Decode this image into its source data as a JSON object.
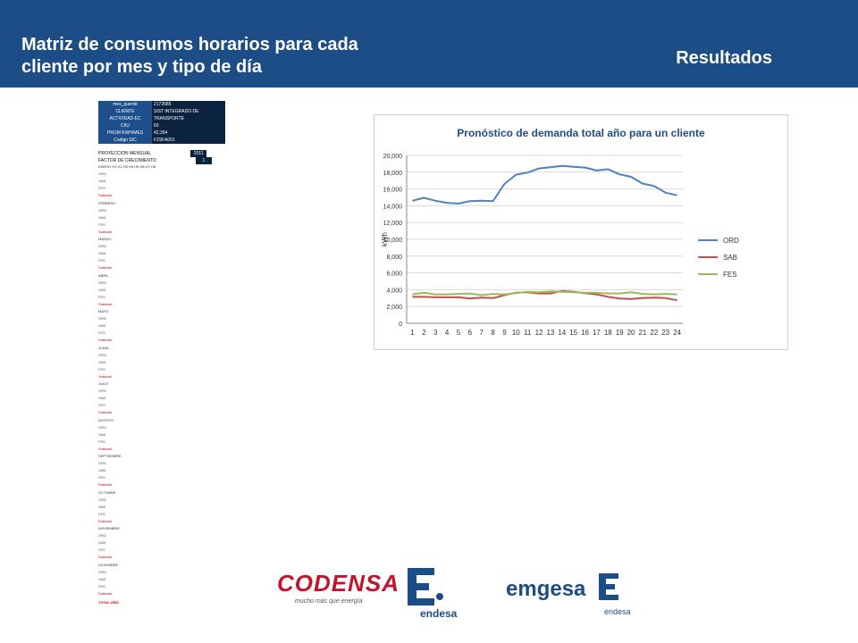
{
  "header": {
    "title": "Matriz de consumos horarios para cada cliente por mes y tipo de día",
    "section": "Resultados"
  },
  "client_info": [
    {
      "key": "mes_puente",
      "value": "2172685"
    },
    {
      "key": "CLIENTE",
      "value": "SIST INTEGRADO DE TRANSP.S.I. 99."
    },
    {
      "key": "ACTIVIDAD EC",
      "value": "TRANSPORTE"
    },
    {
      "key": "CIIU",
      "value": "60"
    },
    {
      "key": "PROM KWH/MES",
      "value": "42,354"
    },
    {
      "key": "Codigo SIC",
      "value": "F2SFA001"
    }
  ],
  "projection": {
    "label_year": "PROYECCION MENSUAL",
    "year": "2011",
    "label_factor": "FACTOR DE CRECIMIENTO",
    "factor": "1"
  },
  "hour_headers": [
    "H1",
    "H2",
    "H3",
    "H4",
    "H5",
    "H6",
    "H7",
    "H8"
  ],
  "months": [
    "ENERO",
    "FEBRERO",
    "MARZO",
    "ABRIL",
    "MAYO",
    "JUNIO",
    "JULIO",
    "AGOSTO",
    "SEPTIEMBRE",
    "OCTUBRE",
    "NOVIEMBRE",
    "DICIEMBRE"
  ],
  "day_types": [
    "ORD",
    "SAB",
    "FES"
  ],
  "subtotal_label": "Subtotal",
  "total_label": "TOTAL AÑO",
  "chart_data": {
    "type": "line",
    "title": "Pronóstico de demanda total año para un cliente",
    "ylabel": "kWh",
    "xlabel": "",
    "categories": [
      1,
      2,
      3,
      4,
      5,
      6,
      7,
      8,
      9,
      10,
      11,
      12,
      13,
      14,
      15,
      16,
      17,
      18,
      19,
      20,
      21,
      22,
      23,
      24
    ],
    "ylim": [
      0,
      20000
    ],
    "yticks": [
      "0",
      "2,000",
      "4,000",
      "6,000",
      "8,000",
      "10,000",
      "12,000",
      "14,000",
      "16,000",
      "18,000",
      "20,000"
    ],
    "grid": true,
    "legend": "right",
    "series": [
      {
        "name": "ORD",
        "color": "#4f81bd",
        "values": [
          14600,
          14950,
          14600,
          14350,
          14250,
          14550,
          14600,
          14550,
          16600,
          17700,
          17950,
          18450,
          18600,
          18750,
          18650,
          18550,
          18200,
          18350,
          17750,
          17450,
          16650,
          16350,
          15550,
          15250
        ]
      },
      {
        "name": "SAB",
        "color": "#c0504d",
        "values": [
          3150,
          3150,
          3100,
          3100,
          3100,
          2950,
          3050,
          3000,
          3350,
          3650,
          3700,
          3550,
          3550,
          3850,
          3750,
          3600,
          3450,
          3150,
          2950,
          2900,
          3000,
          3050,
          3000,
          2750
        ]
      },
      {
        "name": "FES",
        "color": "#9bbb59",
        "values": [
          3450,
          3650,
          3450,
          3450,
          3500,
          3550,
          3350,
          3500,
          3450,
          3600,
          3750,
          3700,
          3800,
          3750,
          3700,
          3650,
          3650,
          3550,
          3550,
          3700,
          3500,
          3450,
          3500,
          3450
        ]
      }
    ]
  },
  "logos": {
    "codensa": "CODENSA",
    "codensa_tagline": "mucho más que energía",
    "endesa": "endesa",
    "emgesa": "emgesa",
    "emgesa_sub": "endesa"
  }
}
